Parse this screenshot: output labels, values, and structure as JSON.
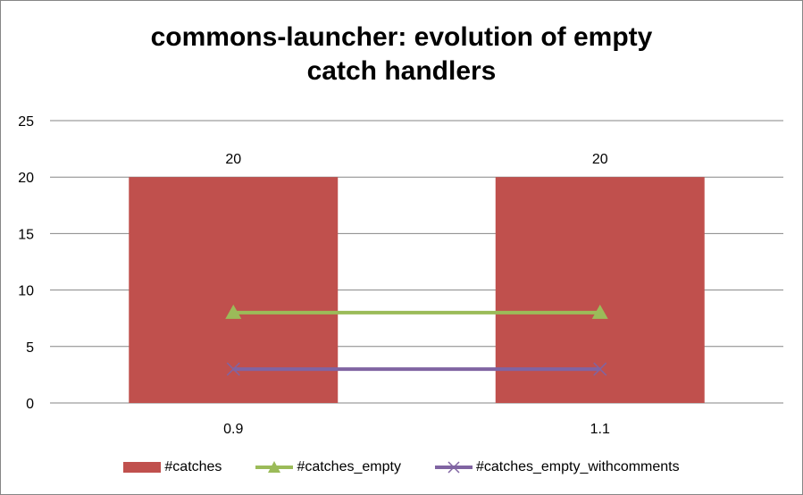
{
  "chart_data": {
    "type": "bar+line",
    "title": "commons-launcher: evolution of empty catch handlers",
    "title_lines": [
      "commons-launcher: evolution of empty",
      "catch handlers"
    ],
    "categories": [
      "0.9",
      "1.1"
    ],
    "ylim": [
      0,
      25
    ],
    "yticks": [
      0,
      5,
      10,
      15,
      20,
      25
    ],
    "grid": true,
    "legend_position": "bottom",
    "series": [
      {
        "name": "#catches",
        "kind": "bar",
        "color": "#C0504D",
        "values": [
          20,
          20
        ],
        "data_labels": [
          "20",
          "20"
        ]
      },
      {
        "name": "#catches_empty",
        "kind": "line",
        "marker": "triangle",
        "color": "#9BBB59",
        "values": [
          8,
          8
        ]
      },
      {
        "name": "#catches_empty_withcomments",
        "kind": "line",
        "marker": "x",
        "color": "#8064A2",
        "values": [
          3,
          3
        ]
      }
    ]
  }
}
